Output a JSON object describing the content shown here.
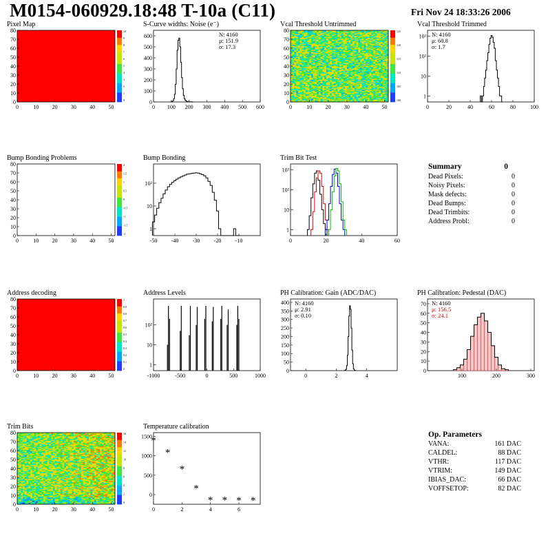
{
  "header": {
    "title": "M0154-060929.18:48 T-10a (C11)",
    "date": "Fri Nov 24 18:33:26 2006"
  },
  "chart_data": [
    {
      "id": "pixel_map",
      "type": "heatmap",
      "title": "Pixel Map",
      "xlim": [
        0,
        52
      ],
      "ylim": [
        0,
        80
      ],
      "xticks": [
        0,
        10,
        20,
        30,
        40,
        50
      ],
      "yticks": [
        0,
        10,
        20,
        30,
        40,
        50,
        60,
        70,
        80
      ],
      "fill": "uniform-max",
      "palette_ticks": [
        "10",
        "9",
        "8",
        "7",
        "6",
        "5",
        "4",
        "3",
        "2",
        "1",
        "0"
      ]
    },
    {
      "id": "scurve_noise",
      "type": "histogram",
      "title": "S-Curve widths: Noise (e⁻)",
      "xlim": [
        0,
        600
      ],
      "ylim": [
        0,
        650
      ],
      "xticks": [
        0,
        100,
        200,
        300,
        400,
        500,
        600
      ],
      "yticks": [
        0,
        100,
        200,
        300,
        400,
        500,
        600
      ],
      "stats": {
        "entries": "N: 4160",
        "mean": "μ: 151.9",
        "sigma": "σ: 17.3"
      },
      "x": [
        100,
        105,
        110,
        115,
        120,
        125,
        130,
        135,
        140,
        145,
        150,
        155,
        160,
        165,
        170,
        175,
        180,
        185,
        190,
        195,
        200,
        205,
        210,
        215,
        220
      ],
      "values": [
        2,
        5,
        12,
        30,
        70,
        160,
        300,
        470,
        560,
        580,
        500,
        360,
        220,
        120,
        60,
        30,
        15,
        8,
        4,
        2,
        1,
        1,
        0,
        1,
        0
      ],
      "scale": "linear"
    },
    {
      "id": "vcal_untrimmed",
      "type": "heatmap",
      "title": "Vcal Threshold Untrimmed",
      "xlim": [
        0,
        52
      ],
      "ylim": [
        0,
        80
      ],
      "xticks": [
        0,
        10,
        20,
        30,
        40,
        50
      ],
      "yticks": [
        0,
        10,
        20,
        30,
        40,
        50,
        60,
        70,
        80
      ],
      "fill": "noisy",
      "palette_ticks": [
        "125",
        "120",
        "115",
        "110",
        "105",
        "100"
      ]
    },
    {
      "id": "vcal_trimmed",
      "type": "histogram",
      "title": "Vcal Threshold Trimmed",
      "xlim": [
        0,
        100
      ],
      "ylim_log": [
        0.5,
        2000
      ],
      "xticks": [
        0,
        20,
        40,
        60,
        80,
        100
      ],
      "yticks": [
        "1",
        "10",
        "10²",
        "10³"
      ],
      "stats": {
        "entries": "N: 4160",
        "mean": "μ: 60.8",
        "sigma": "σ:  1.7"
      },
      "x": [
        50,
        51,
        52,
        53,
        54,
        55,
        56,
        57,
        58,
        59,
        60,
        61,
        62,
        63,
        64,
        65,
        66,
        67,
        68,
        69,
        70
      ],
      "values": [
        1,
        0,
        1,
        3,
        8,
        20,
        60,
        150,
        400,
        800,
        1100,
        900,
        500,
        250,
        60,
        20,
        8,
        3,
        1,
        1,
        0
      ],
      "scale": "log"
    },
    {
      "id": "bump_problems",
      "type": "heatmap",
      "title": "Bump Bonding Problems",
      "xlim": [
        0,
        52
      ],
      "ylim": [
        0,
        80
      ],
      "xticks": [
        0,
        10,
        20,
        30,
        40,
        50
      ],
      "yticks": [
        0,
        10,
        20,
        30,
        40,
        50,
        60,
        70,
        80
      ],
      "fill": "empty",
      "palette_ticks": [
        "2",
        "1.5",
        "1",
        "0.5",
        "0",
        "-0.5",
        "-1",
        "-1.5",
        "-2"
      ]
    },
    {
      "id": "bump_bonding",
      "type": "histogram",
      "title": "Bump Bonding",
      "xlim": [
        -50,
        0
      ],
      "ylim_log": [
        0.5,
        700
      ],
      "xticks": [
        -50,
        -40,
        -30,
        -20,
        -10
      ],
      "yticks": [
        "1",
        "10",
        "10²"
      ],
      "x": [
        -50,
        -49,
        -48,
        -47,
        -46,
        -45,
        -44,
        -43,
        -42,
        -41,
        -40,
        -39,
        -38,
        -37,
        -36,
        -35,
        -34,
        -33,
        -32,
        -31,
        -30,
        -29,
        -28,
        -27,
        -26,
        -25,
        -24,
        -23,
        -22,
        -21,
        -20,
        -19,
        -18,
        -17,
        -16,
        -15,
        -14,
        -13,
        -12,
        -11,
        -10
      ],
      "values": [
        2,
        4,
        8,
        14,
        22,
        34,
        50,
        70,
        90,
        110,
        130,
        150,
        170,
        190,
        210,
        230,
        250,
        260,
        270,
        280,
        285,
        280,
        260,
        240,
        210,
        170,
        120,
        80,
        40,
        18,
        6,
        1,
        0,
        0,
        0,
        0,
        0,
        0,
        1,
        0,
        0
      ],
      "scale": "log"
    },
    {
      "id": "trim_bit_test",
      "type": "histogram",
      "title": "Trim Bit Test",
      "xlim": [
        0,
        60
      ],
      "ylim_log": [
        0.5,
        2000
      ],
      "xticks": [
        0,
        20,
        40,
        60
      ],
      "yticks": [
        "1",
        "10",
        "10²",
        "10³"
      ],
      "series": [
        {
          "name": "",
          "color": "#000000",
          "x": [
            10,
            11,
            12,
            13,
            14,
            15,
            16,
            17,
            18,
            19,
            20
          ],
          "values": [
            1,
            5,
            40,
            200,
            700,
            900,
            300,
            60,
            10,
            2,
            1
          ]
        },
        {
          "name": "",
          "color": "#dd0000",
          "x": [
            12,
            13,
            14,
            15,
            16,
            17,
            18,
            19,
            20,
            21
          ],
          "values": [
            1,
            8,
            80,
            400,
            900,
            700,
            150,
            20,
            3,
            1
          ]
        },
        {
          "name": "",
          "color": "#0000cc",
          "x": [
            20,
            21,
            22,
            23,
            24,
            25,
            26,
            27,
            28,
            29,
            30
          ],
          "values": [
            1,
            3,
            20,
            150,
            600,
            1100,
            700,
            150,
            20,
            3,
            1
          ]
        },
        {
          "name": "",
          "color": "#00bb00",
          "x": [
            22,
            23,
            24,
            25,
            26,
            27,
            28,
            29,
            30,
            31
          ],
          "values": [
            1,
            10,
            80,
            500,
            1200,
            900,
            200,
            25,
            3,
            1
          ]
        }
      ],
      "scale": "log"
    },
    {
      "id": "address_decoding",
      "type": "heatmap",
      "title": "Address decoding",
      "xlim": [
        0,
        52
      ],
      "ylim": [
        0,
        80
      ],
      "xticks": [
        0,
        10,
        20,
        30,
        40,
        50
      ],
      "yticks": [
        0,
        10,
        20,
        30,
        40,
        50,
        60,
        70,
        80
      ],
      "fill": "uniform-max",
      "palette_ticks": [
        "1",
        "0.9",
        "0.8",
        "0.7",
        "0.6",
        "0.5",
        "0.4",
        "0.3",
        "0.2",
        "0.1",
        "0"
      ]
    },
    {
      "id": "address_levels",
      "type": "histogram",
      "title": "Address Levels",
      "xlim": [
        -1000,
        1000
      ],
      "ylim_log": [
        0.5,
        2000
      ],
      "xticks": [
        -1000,
        -500,
        0,
        500,
        1000
      ],
      "yticks": [
        "1",
        "10",
        "10²"
      ],
      "x": [
        -740,
        -720,
        -700,
        -500,
        -480,
        -330,
        -310,
        -200,
        -180,
        -40,
        -20,
        100,
        120,
        260,
        280,
        380,
        400,
        560,
        580,
        600
      ],
      "values": [
        10,
        900,
        200,
        50,
        900,
        30,
        900,
        100,
        800,
        200,
        900,
        150,
        800,
        200,
        900,
        100,
        600,
        100,
        900,
        200
      ],
      "scale": "log"
    },
    {
      "id": "ph_gain",
      "type": "histogram",
      "title": "PH Calibration: Gain (ADC/DAC)",
      "xlim": [
        -1,
        6
      ],
      "ylim": [
        0,
        420
      ],
      "xticks": [
        0,
        2,
        4
      ],
      "yticks": [
        0,
        50,
        100,
        150,
        200,
        250,
        300,
        350,
        400
      ],
      "stats": {
        "entries": "N: 4160",
        "mean": "μ: 2.91",
        "sigma": "σ: 0.10"
      },
      "x": [
        2.55,
        2.6,
        2.65,
        2.7,
        2.75,
        2.8,
        2.85,
        2.9,
        2.95,
        3.0,
        3.05,
        3.1,
        3.15,
        3.2,
        3.25
      ],
      "values": [
        1,
        3,
        8,
        30,
        90,
        200,
        320,
        380,
        360,
        250,
        120,
        40,
        10,
        3,
        1
      ],
      "scale": "linear"
    },
    {
      "id": "ph_pedestal",
      "type": "histogram",
      "title": "PH Calibration: Pedestal (DAC)",
      "xlim": [
        0,
        310
      ],
      "ylim": [
        0,
        75
      ],
      "xticks": [
        100,
        200,
        300
      ],
      "yticks": [
        0,
        10,
        20,
        30,
        40,
        50,
        60,
        70
      ],
      "stats": {
        "entries": "N: 4160",
        "mean": "μ: 156.5",
        "sigma": "σ: 24.1",
        "mean_color": "#dd0000"
      },
      "x": [
        80,
        90,
        100,
        110,
        120,
        130,
        140,
        150,
        160,
        170,
        180,
        190,
        200,
        210,
        220,
        230
      ],
      "values": [
        1,
        3,
        6,
        12,
        22,
        36,
        48,
        56,
        60,
        52,
        40,
        26,
        14,
        6,
        2,
        1
      ],
      "scale": "linear"
    },
    {
      "id": "trim_bits",
      "type": "heatmap",
      "title": "Trim Bits",
      "xlim": [
        0,
        52
      ],
      "ylim": [
        0,
        80
      ],
      "xticks": [
        0,
        10,
        20,
        30,
        40,
        50
      ],
      "yticks": [
        0,
        10,
        20,
        30,
        40,
        50,
        60,
        70,
        80
      ],
      "fill": "noisy",
      "palette_ticks": [
        "16",
        "14",
        "12",
        "10",
        "8",
        "6",
        "4",
        "2",
        "0"
      ]
    },
    {
      "id": "temperature_calibration",
      "type": "scatter",
      "title": "Temperature calibration",
      "xlim": [
        0,
        7.5
      ],
      "ylim": [
        -250,
        1600
      ],
      "xticks": [
        0,
        2,
        4,
        6
      ],
      "yticks": [
        0,
        500,
        1000,
        1500
      ],
      "x": [
        0,
        1,
        2,
        3,
        4,
        5,
        6,
        7
      ],
      "values": [
        1400,
        1090,
        670,
        170,
        -130,
        -130,
        -140,
        -140
      ],
      "marker": "*"
    }
  ],
  "summary": {
    "title": "Summary",
    "value": "0",
    "rows": [
      {
        "label": "Dead Pixels:",
        "value": "0"
      },
      {
        "label": "Noisy Pixels:",
        "value": "0"
      },
      {
        "label": "Mask defects:",
        "value": "0"
      },
      {
        "label": "Dead Bumps:",
        "value": "0"
      },
      {
        "label": "Dead Trimbits:",
        "value": "0"
      },
      {
        "label": "Address Probl:",
        "value": "0"
      }
    ]
  },
  "op_params": {
    "title": "Op. Parameters",
    "rows": [
      {
        "label": "VANA:",
        "value": "161 DAC"
      },
      {
        "label": "CALDEL:",
        "value": "88 DAC"
      },
      {
        "label": "VTHR:",
        "value": "117 DAC"
      },
      {
        "label": "VTRIM:",
        "value": "149 DAC"
      },
      {
        "label": "IBIAS_DAC:",
        "value": "66 DAC"
      },
      {
        "label": "VOFFSETOP:",
        "value": "82 DAC"
      }
    ]
  }
}
